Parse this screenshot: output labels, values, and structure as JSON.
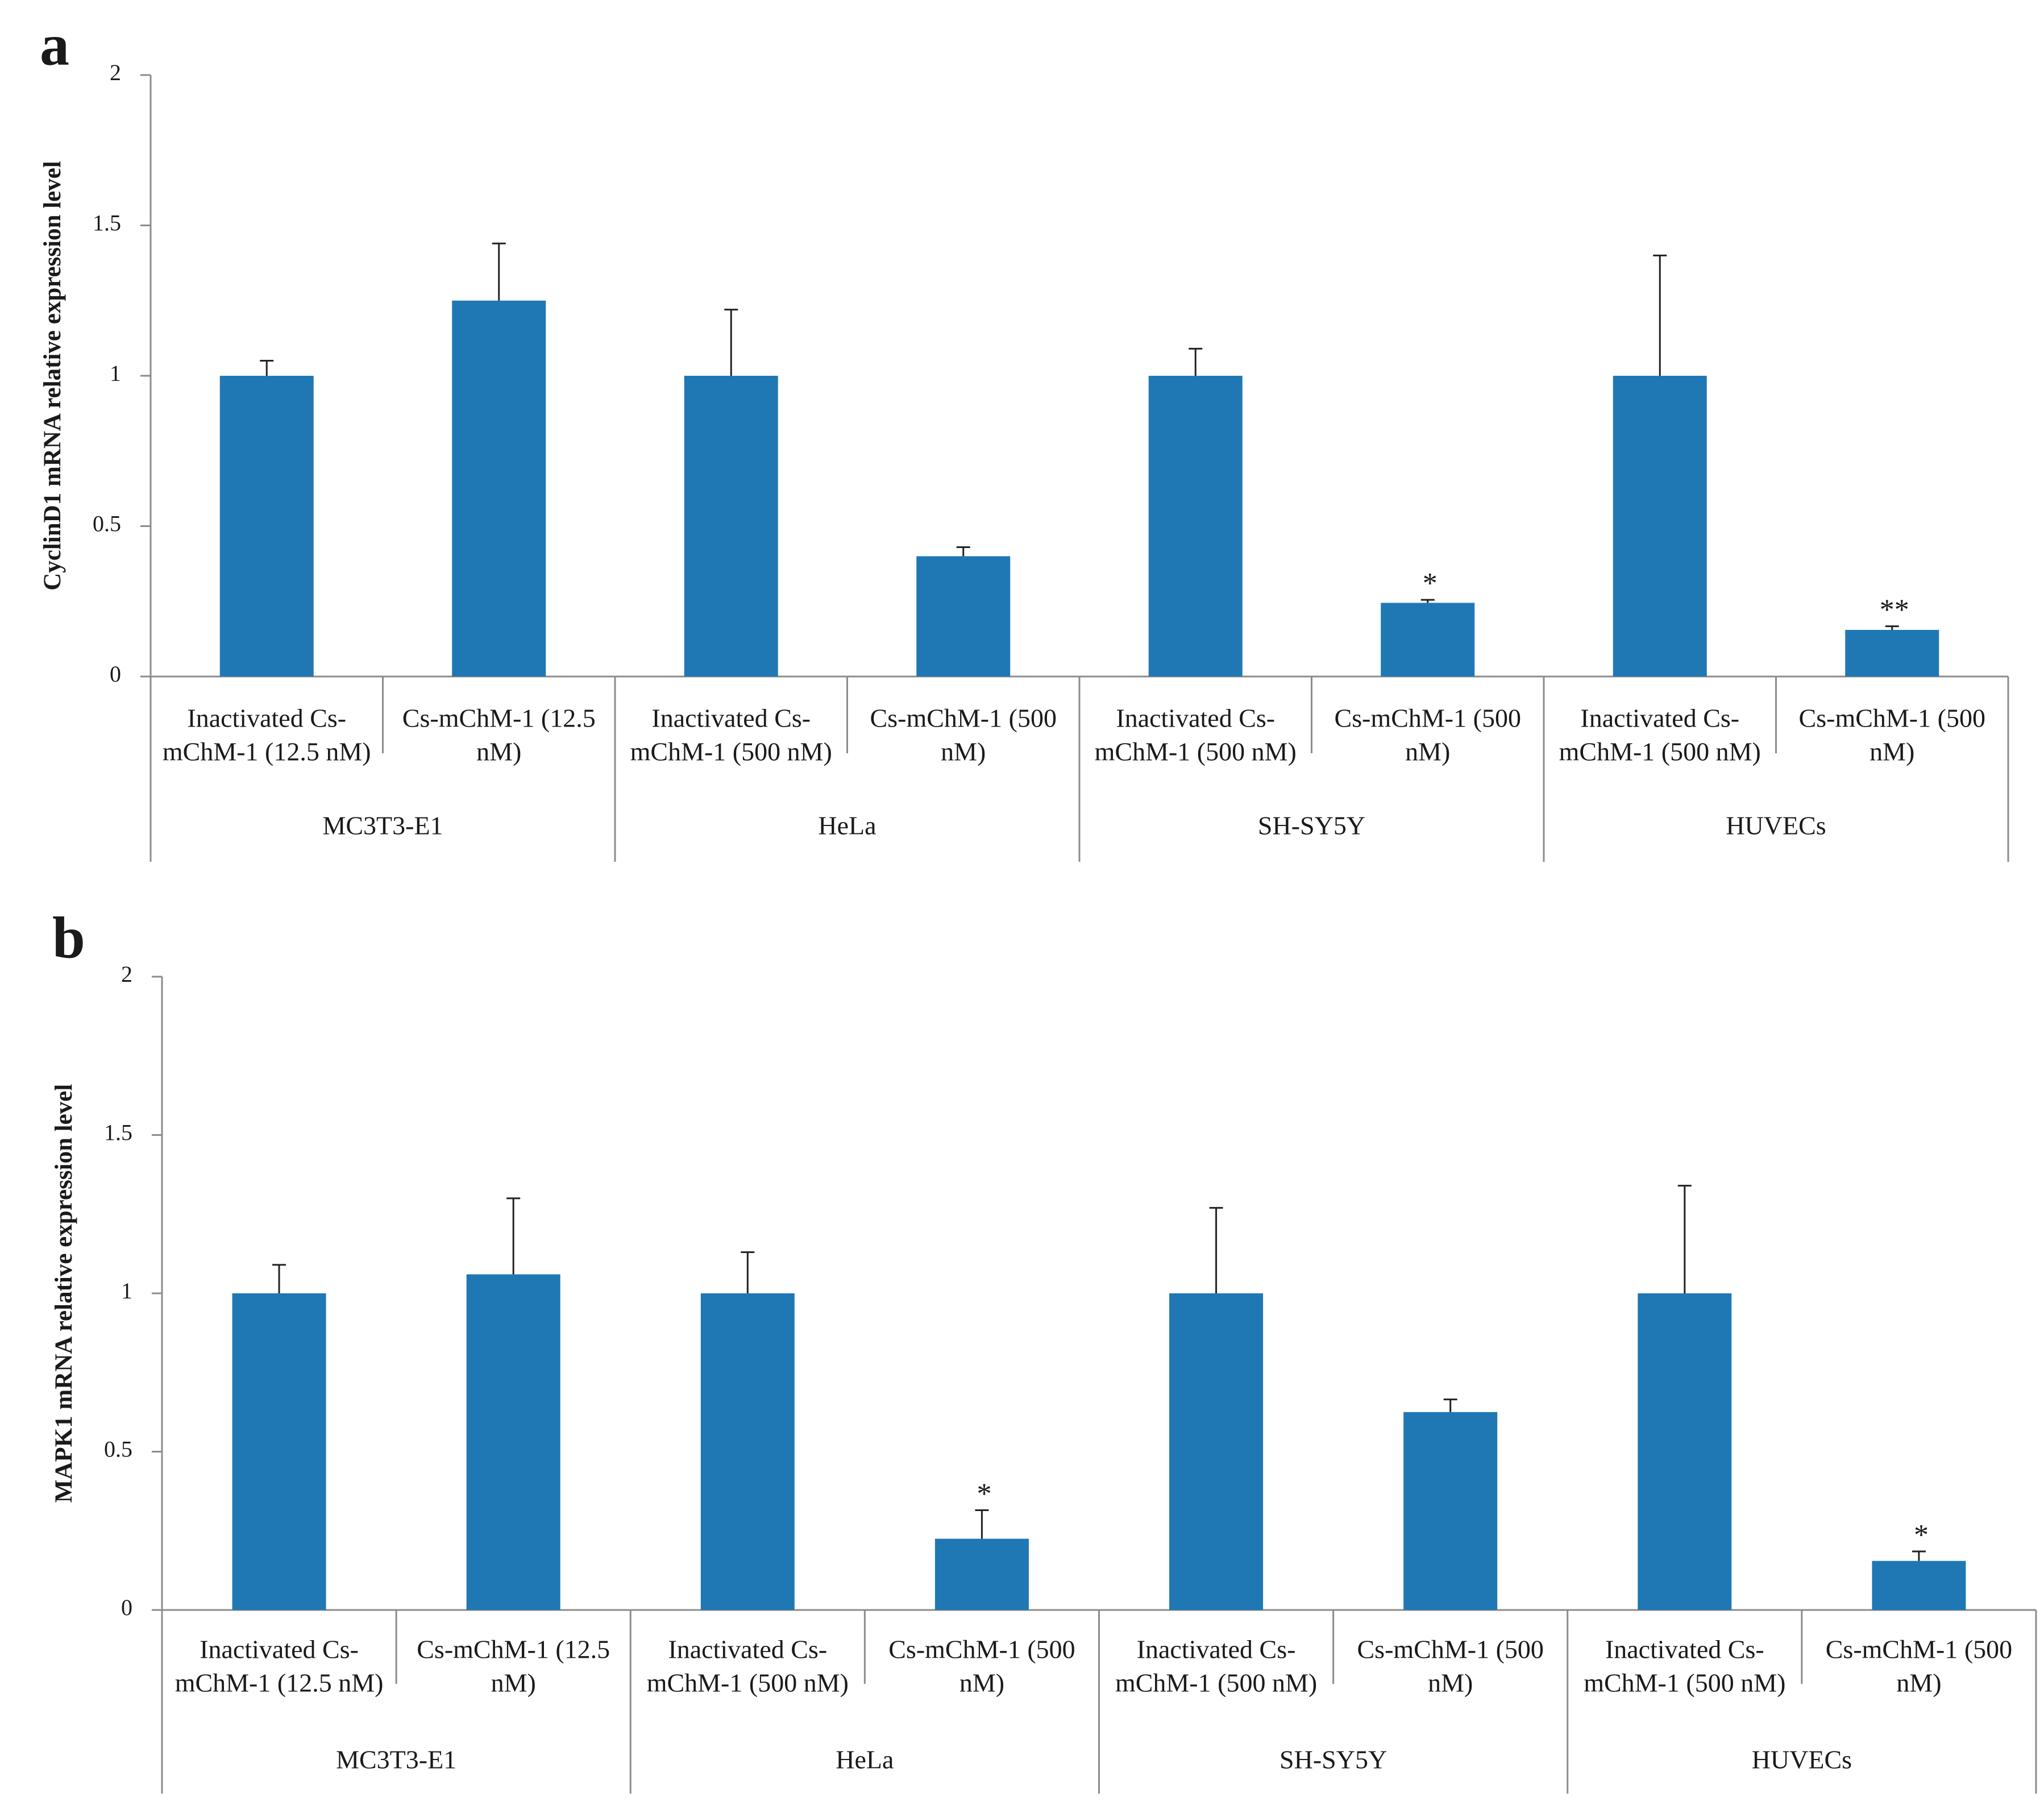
{
  "bar_color": "#1f78b4",
  "axis_color": "#8c8c8c",
  "chart_data": [
    {
      "panel": "a",
      "type": "bar",
      "ylabel": "CyclinD1 mRNA relative expression level",
      "ylim": [
        0,
        2
      ],
      "yticks": [
        "0",
        "0.5",
        "1",
        "1.5",
        "2"
      ],
      "groups": [
        "MC3T3-E1",
        "HeLa",
        "SH-SY5Y",
        "HUVECs"
      ],
      "categories": [
        [
          "Inactivated Cs-",
          "mChM-1 (12.5 nM)"
        ],
        [
          "Cs-mChM-1 (12.5",
          "nM)"
        ],
        [
          "Inactivated Cs-",
          "mChM-1 (500 nM)"
        ],
        [
          "Cs-mChM-1 (500",
          "nM)"
        ],
        [
          "Inactivated Cs-",
          "mChM-1 (500 nM)"
        ],
        [
          "Cs-mChM-1 (500",
          "nM)"
        ],
        [
          "Inactivated Cs-",
          "mChM-1 (500 nM)"
        ],
        [
          "Cs-mChM-1 (500",
          "nM)"
        ]
      ],
      "values": [
        1.0,
        1.25,
        1.0,
        0.4,
        1.0,
        0.245,
        1.0,
        0.155
      ],
      "errors": [
        0.05,
        0.19,
        0.22,
        0.03,
        0.09,
        0.01,
        0.4,
        0.012
      ],
      "significance": [
        "",
        "",
        "",
        "",
        "",
        "*",
        "",
        "**"
      ]
    },
    {
      "panel": "b",
      "type": "bar",
      "ylabel": "MAPK1 mRNA relative expression level",
      "ylim": [
        0,
        2
      ],
      "yticks": [
        "0",
        "0.5",
        "1",
        "1.5",
        "2"
      ],
      "groups": [
        "MC3T3-E1",
        "HeLa",
        "SH-SY5Y",
        "HUVECs"
      ],
      "categories": [
        [
          "Inactivated Cs-",
          "mChM-1 (12.5 nM)"
        ],
        [
          "Cs-mChM-1 (12.5",
          "nM)"
        ],
        [
          "Inactivated Cs-",
          "mChM-1 (500 nM)"
        ],
        [
          "Cs-mChM-1 (500",
          "nM)"
        ],
        [
          "Inactivated Cs-",
          "mChM-1 (500 nM)"
        ],
        [
          "Cs-mChM-1 (500",
          "nM)"
        ],
        [
          "Inactivated Cs-",
          "mChM-1 (500 nM)"
        ],
        [
          "Cs-mChM-1 (500",
          "nM)"
        ]
      ],
      "values": [
        1.0,
        1.06,
        1.0,
        0.225,
        1.0,
        0.625,
        1.0,
        0.155
      ],
      "errors": [
        0.09,
        0.24,
        0.13,
        0.09,
        0.27,
        0.04,
        0.34,
        0.03
      ],
      "significance": [
        "",
        "",
        "",
        "*",
        "",
        "",
        "",
        "*"
      ]
    }
  ]
}
